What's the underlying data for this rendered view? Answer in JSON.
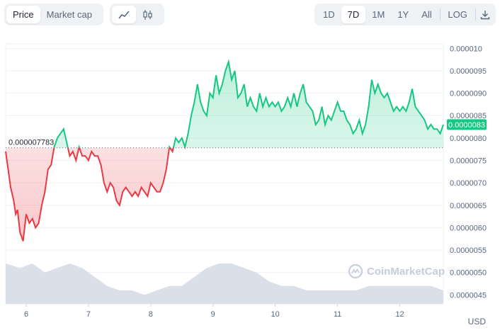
{
  "toolbar": {
    "view_tabs": [
      "Price",
      "Market cap"
    ],
    "active_view": "Price",
    "chart_types": [
      "line-chart-icon",
      "candlestick-icon"
    ],
    "ranges": [
      "1D",
      "7D",
      "1M",
      "1Y",
      "All"
    ],
    "active_range": "7D",
    "log_label": "LOG",
    "download_icon": "download-icon"
  },
  "watermark": "CoinMarketCap",
  "currency_label": "USD",
  "colors": {
    "up": "#16c784",
    "down": "#ea3943",
    "volume": "#cfd6e4",
    "badge": "#16c784"
  },
  "chart_data": {
    "type": "line",
    "xlabel": "",
    "ylabel": "",
    "x_ticks": [
      "6",
      "7",
      "8",
      "9",
      "10",
      "11",
      "12"
    ],
    "y_ticks": [
      "0.000010",
      "0.0000095",
      "0.0000090",
      "0.0000085",
      "0.0000080",
      "0.0000075",
      "0.0000070",
      "0.0000065",
      "0.0000060",
      "0.0000055",
      "0.0000050",
      "0.0000045"
    ],
    "ylim": [
      4.3e-06,
      1.01e-05
    ],
    "xlim": [
      5.67,
      12.7
    ],
    "reference_price": 7.783e-06,
    "reference_label": "0.000007783",
    "current_price_label": "0.0000083",
    "grid": "horizontal",
    "series": [
      {
        "x": [
          5.67,
          5.7,
          5.75,
          5.8,
          5.83,
          5.86,
          5.9,
          5.95,
          6.0,
          6.05,
          6.1,
          6.15,
          6.2,
          6.25,
          6.3,
          6.35,
          6.4,
          6.45,
          6.5,
          6.55,
          6.6,
          6.65,
          6.7,
          6.75,
          6.8,
          6.85,
          6.9,
          6.95,
          7.0,
          7.05,
          7.1,
          7.15,
          7.2,
          7.25,
          7.3,
          7.35,
          7.4,
          7.45,
          7.5,
          7.55,
          7.6,
          7.65,
          7.7,
          7.75,
          7.8,
          7.85,
          7.9,
          7.95,
          8.0,
          8.05,
          8.1,
          8.15,
          8.2,
          8.25,
          8.3,
          8.35,
          8.4,
          8.45,
          8.5,
          8.55,
          8.6,
          8.65,
          8.7,
          8.75,
          8.8,
          8.85,
          8.9,
          8.95,
          9.0,
          9.05,
          9.1,
          9.15,
          9.2,
          9.25,
          9.3,
          9.35,
          9.4,
          9.45,
          9.5,
          9.55,
          9.6,
          9.65,
          9.7,
          9.75,
          9.8,
          9.85,
          9.9,
          9.95,
          10.0,
          10.05,
          10.1,
          10.15,
          10.2,
          10.25,
          10.3,
          10.35,
          10.4,
          10.45,
          10.5,
          10.55,
          10.6,
          10.65,
          10.7,
          10.75,
          10.8,
          10.85,
          10.9,
          10.95,
          11.0,
          11.05,
          11.1,
          11.15,
          11.2,
          11.25,
          11.3,
          11.35,
          11.4,
          11.45,
          11.5,
          11.55,
          11.6,
          11.65,
          11.7,
          11.75,
          11.8,
          11.85,
          11.9,
          11.95,
          12.0,
          12.05,
          12.1,
          12.15,
          12.2,
          12.25,
          12.3,
          12.35,
          12.4,
          12.45,
          12.5,
          12.55,
          12.6,
          12.65,
          12.7
        ],
        "values": [
          7.7e-06,
          7.4e-06,
          6.9e-06,
          6.6e-06,
          6.3e-06,
          6.4e-06,
          5.9e-06,
          5.7e-06,
          6.3e-06,
          6.1e-06,
          6.2e-06,
          6e-06,
          6.1e-06,
          6.5e-06,
          6.8e-06,
          7.3e-06,
          7.4e-06,
          7.8e-06,
          8e-06,
          8.1e-06,
          8.2e-06,
          7.9e-06,
          7.6e-06,
          7.7e-06,
          7.5e-06,
          7.8e-06,
          7.6e-06,
          7.6e-06,
          7.5e-06,
          7.7e-06,
          7.6e-06,
          7.6e-06,
          7.4e-06,
          7e-06,
          6.8e-06,
          7e-06,
          6.9e-06,
          6.6e-06,
          6.5e-06,
          6.8e-06,
          6.9e-06,
          6.8e-06,
          6.7e-06,
          6.8e-06,
          6.7e-06,
          6.9e-06,
          6.8e-06,
          6.7e-06,
          7e-06,
          6.9e-06,
          6.8e-06,
          6.8e-06,
          7e-06,
          7.3e-06,
          7.8e-06,
          7.7e-06,
          8e-06,
          7.9e-06,
          8e-06,
          7.8e-06,
          8.1e-06,
          8.5e-06,
          8.8e-06,
          9.2e-06,
          8.8e-06,
          8.6e-06,
          8.5e-06,
          9e-06,
          8.9e-06,
          9.4e-06,
          9e-06,
          9.2e-06,
          9.5e-06,
          9.7e-06,
          9.3e-06,
          9.5e-06,
          8.9e-06,
          9e-06,
          9.2e-06,
          8.7e-06,
          8.9e-06,
          8.7e-06,
          8.6e-06,
          9e-06,
          8.7e-06,
          8.9e-06,
          8.7e-06,
          8.8e-06,
          8.7e-06,
          8.8e-06,
          8.6e-06,
          8.7e-06,
          8.9e-06,
          8.7e-06,
          9e-06,
          8.7e-06,
          9e-06,
          9.2e-06,
          8.8e-06,
          8.7e-06,
          8.6e-06,
          8.3e-06,
          8.4e-06,
          8.7e-06,
          8.3e-06,
          8.5e-06,
          8.4e-06,
          8.6e-06,
          8.8e-06,
          8.6e-06,
          8.6e-06,
          8.4e-06,
          8.3e-06,
          8.1e-06,
          8.2e-06,
          8.4e-06,
          8.1e-06,
          8.3e-06,
          8.7e-06,
          9.3e-06,
          9e-06,
          9.2e-06,
          9e-06,
          8.9e-06,
          9e-06,
          8.8e-06,
          8.6e-06,
          8.7e-06,
          8.6e-06,
          8.7e-06,
          8.6e-06,
          8.8e-06,
          9.1e-06,
          8.7e-06,
          8.6e-06,
          8.5e-06,
          8.4e-06,
          8.2e-06,
          8.3e-06,
          8.2e-06,
          8.2e-06,
          8.1e-06,
          8.3e-06
        ]
      }
    ],
    "volume": {
      "x": [
        5.67,
        5.9,
        6.1,
        6.3,
        6.5,
        6.7,
        6.9,
        7.1,
        7.3,
        7.5,
        7.7,
        7.9,
        8.1,
        8.3,
        8.5,
        8.7,
        8.9,
        9.1,
        9.3,
        9.5,
        9.7,
        9.9,
        10.1,
        10.3,
        10.5,
        10.7,
        10.9,
        11.1,
        11.3,
        11.5,
        11.7,
        11.9,
        12.1,
        12.3,
        12.5,
        12.7
      ],
      "values": [
        5.2e-06,
        5.1e-06,
        5.2e-06,
        5e-06,
        5.1e-06,
        5.2e-06,
        5.1e-06,
        4.9e-06,
        4.7e-06,
        4.6e-06,
        4.6e-06,
        4.5e-06,
        4.6e-06,
        4.7e-06,
        4.7e-06,
        4.9e-06,
        5.1e-06,
        5.2e-06,
        5.2e-06,
        5.1e-06,
        5e-06,
        4.8e-06,
        4.7e-06,
        4.7e-06,
        4.6e-06,
        4.6e-06,
        4.6e-06,
        4.6e-06,
        4.6e-06,
        4.7e-06,
        4.7e-06,
        4.7e-06,
        4.7e-06,
        4.7e-06,
        4.7e-06,
        4.6e-06
      ]
    }
  }
}
